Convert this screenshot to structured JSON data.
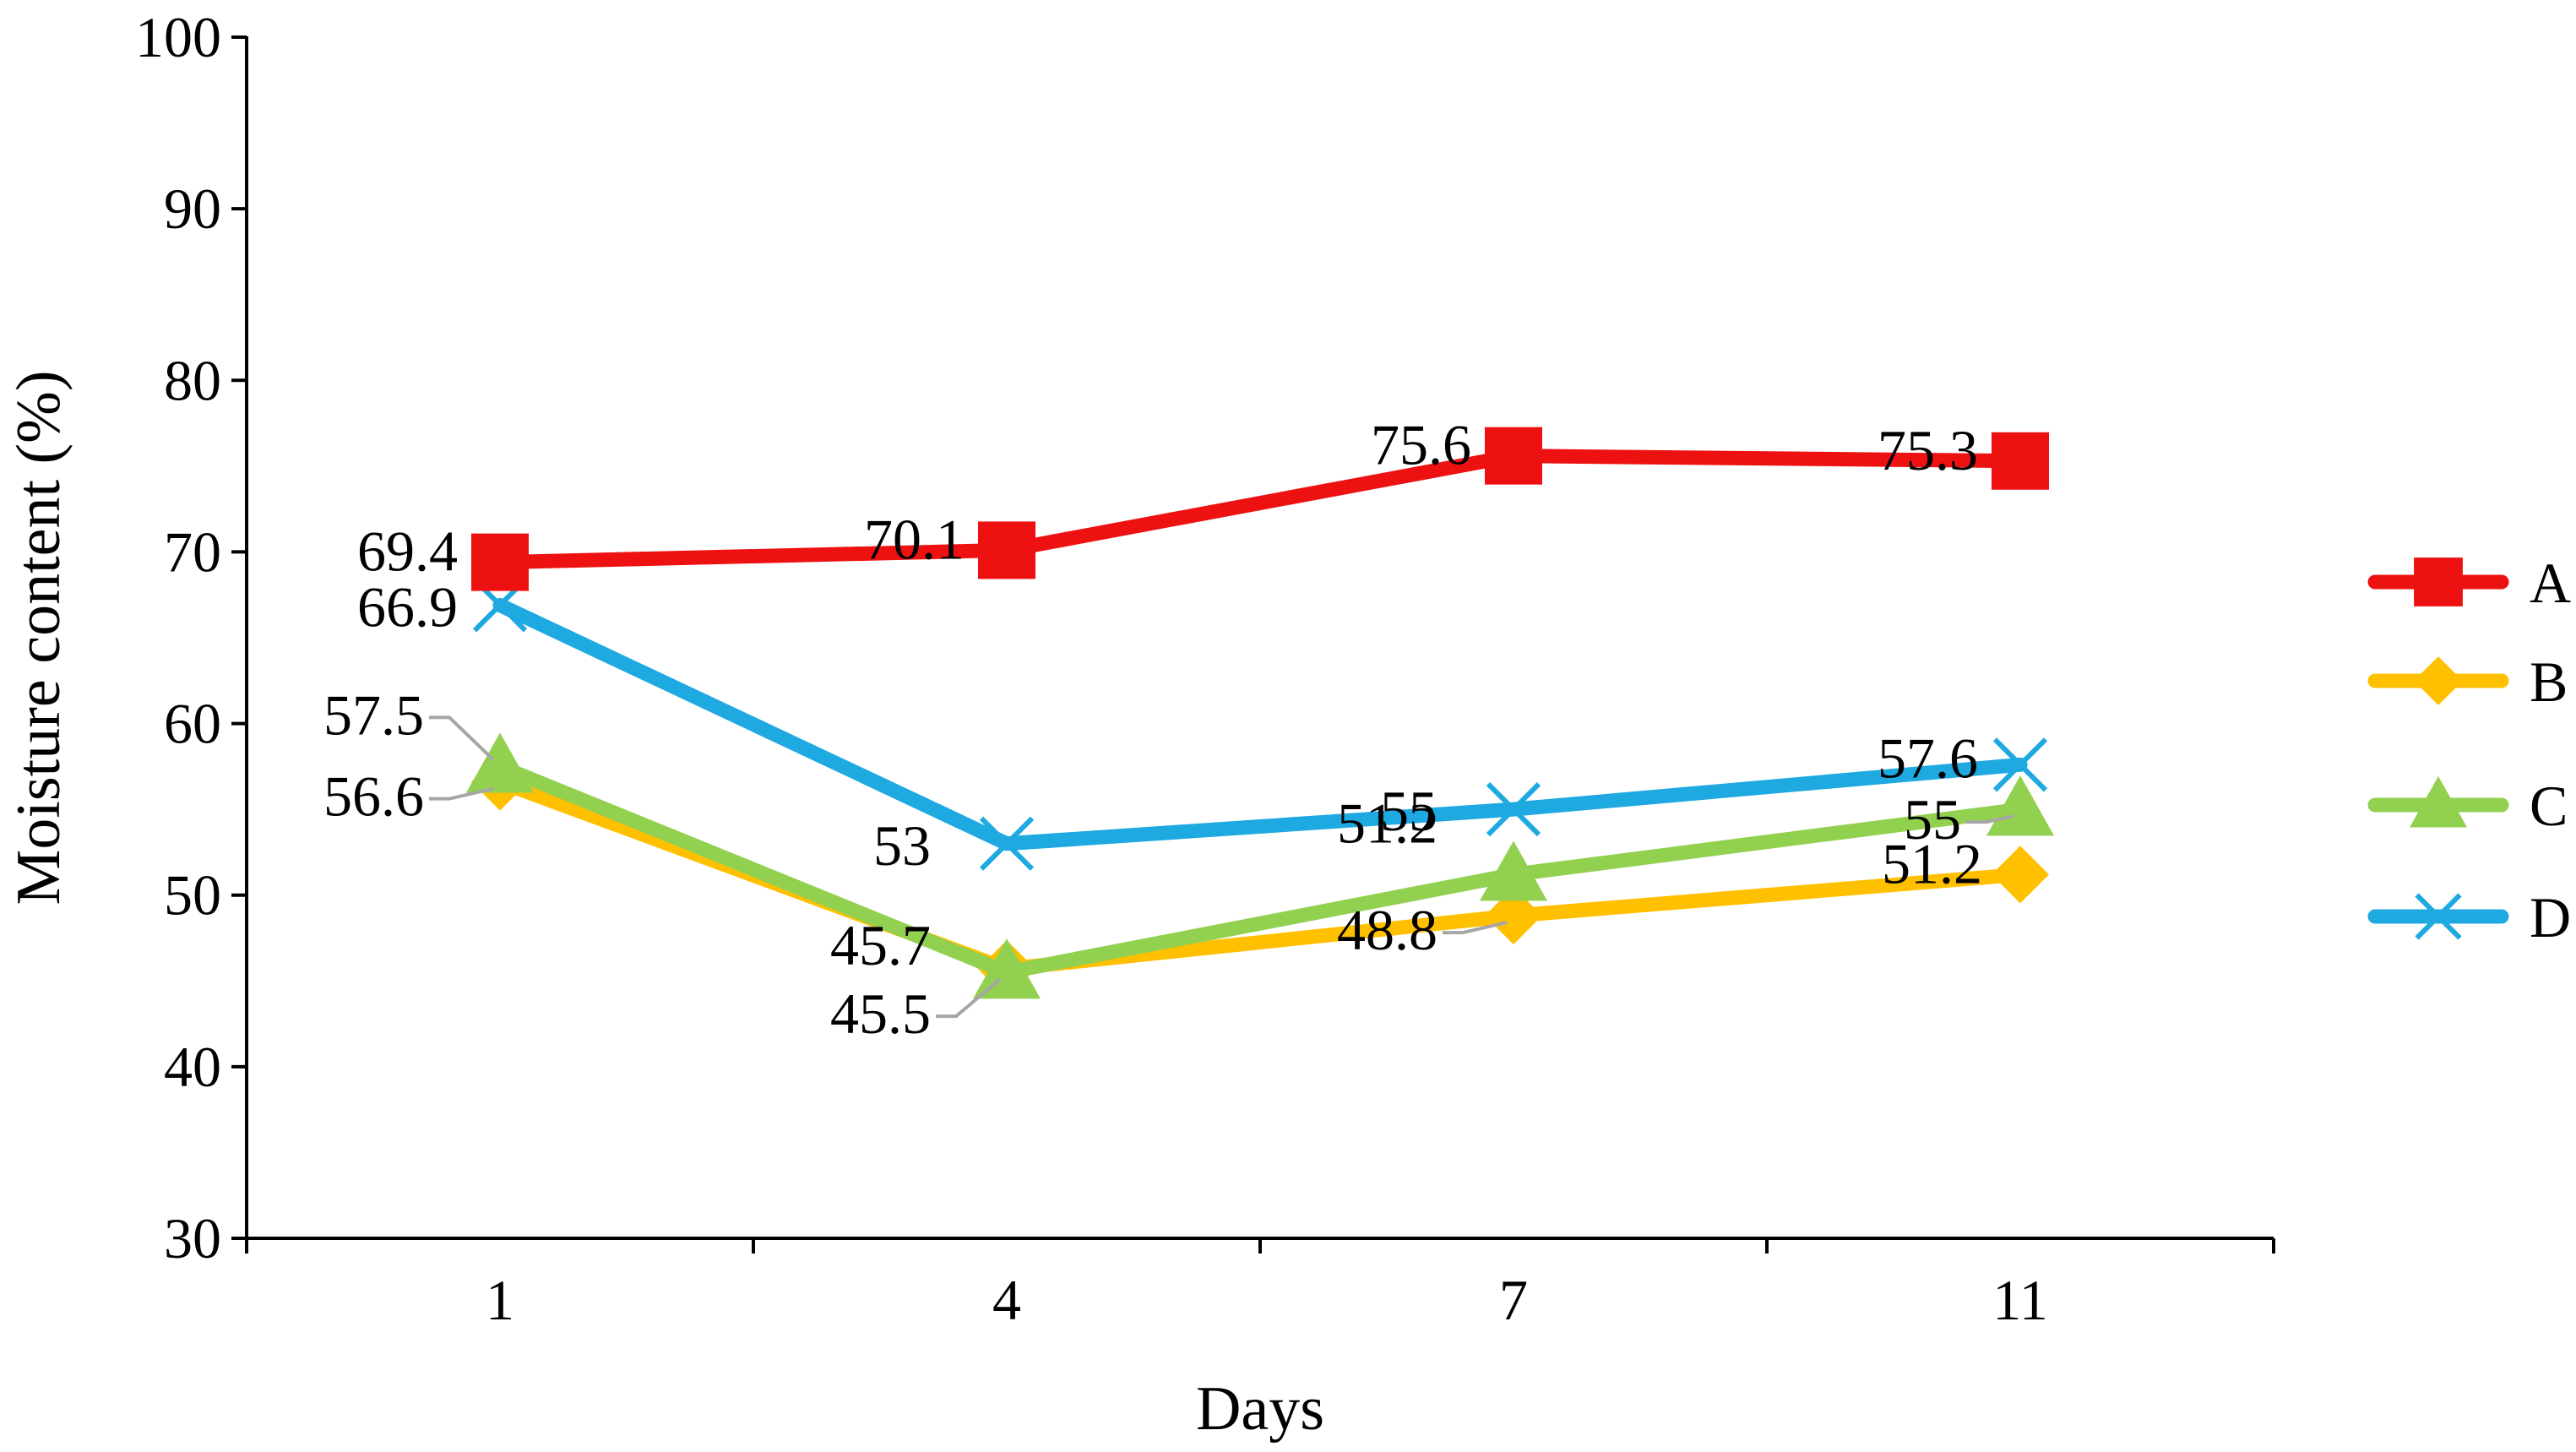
{
  "chart_data": {
    "type": "line",
    "title": "",
    "xlabel": "Days",
    "ylabel": "Moisture content (%)",
    "categories": [
      "1",
      "4",
      "7",
      "11"
    ],
    "ylim": [
      30,
      100
    ],
    "yticks": [
      30,
      40,
      50,
      60,
      70,
      80,
      90,
      100
    ],
    "grid": false,
    "legend_position": "right",
    "series": [
      {
        "name": "A",
        "color": "#EE1111",
        "marker": "square",
        "values": [
          69.4,
          70.1,
          75.6,
          75.3
        ],
        "labels": [
          "69.4",
          "70.1",
          "75.6",
          "75.3"
        ]
      },
      {
        "name": "B",
        "color": "#FFC000",
        "marker": "diamond",
        "values": [
          56.6,
          45.7,
          48.8,
          51.2
        ],
        "labels": [
          "56.6",
          "45.7",
          "48.8",
          "51.2"
        ]
      },
      {
        "name": "C",
        "color": "#92D050",
        "marker": "triangle",
        "values": [
          57.5,
          45.5,
          51.2,
          55
        ],
        "labels": [
          "57.5",
          "45.5",
          "51.2",
          "55"
        ]
      },
      {
        "name": "D",
        "color": "#1FA9E1",
        "marker": "x",
        "values": [
          66.9,
          53,
          55,
          57.6
        ],
        "labels": [
          "66.9",
          "53",
          "55",
          "57.6"
        ]
      }
    ]
  }
}
